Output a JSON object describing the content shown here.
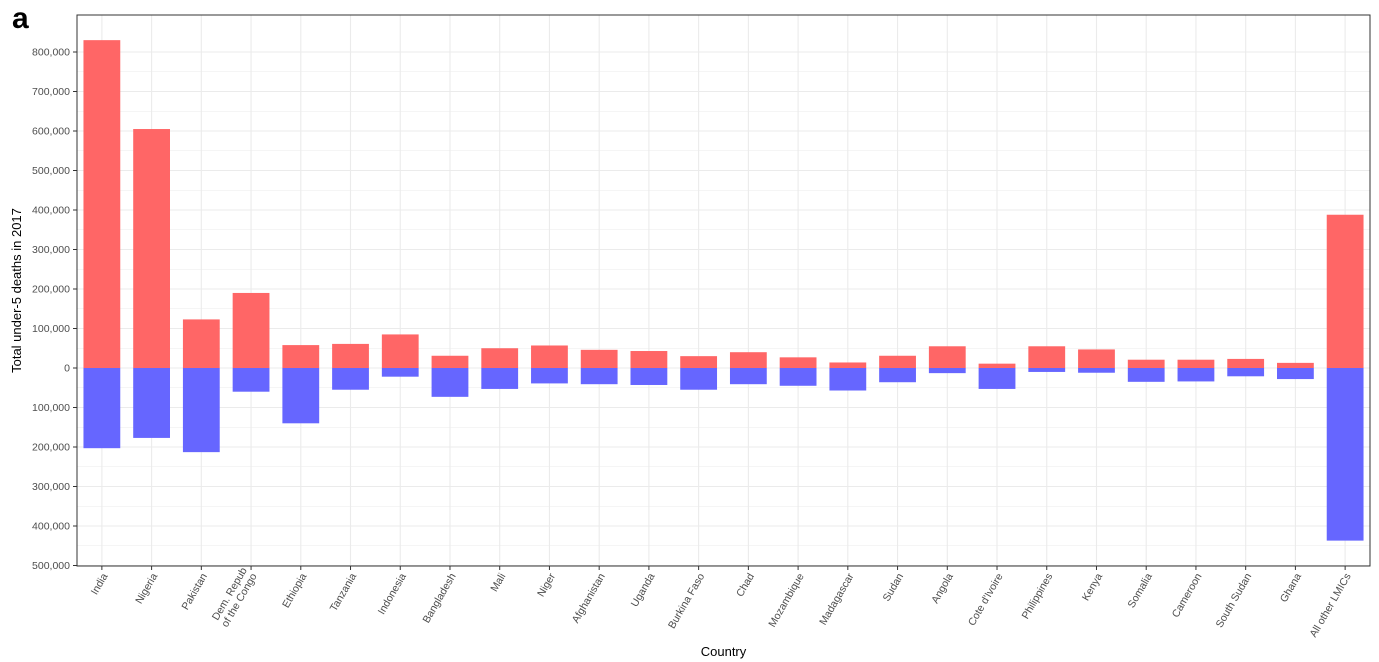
{
  "panel_label": "a",
  "colors": {
    "positive": "#ff6666",
    "negative": "#6666ff",
    "grid": "#ebebeb",
    "frame": "#333333"
  },
  "chart_data": {
    "type": "bar",
    "title": "",
    "xlabel": "Country",
    "ylabel": "Total under-5 deaths in 2017",
    "ylim": [
      -500000,
      850000
    ],
    "yticks": [
      -500000,
      -400000,
      -300000,
      -200000,
      -100000,
      0,
      100000,
      200000,
      300000,
      400000,
      500000,
      600000,
      700000,
      800000
    ],
    "ytick_labels": [
      "500,000",
      "400,000",
      "300,000",
      "200,000",
      "100,000",
      "0",
      "100,000",
      "200,000",
      "300,000",
      "400,000",
      "500,000",
      "600,000",
      "700,000",
      "800,000"
    ],
    "grid": true,
    "categories": [
      "India",
      "Nigeria",
      "Pakistan",
      "Dem. Repub|of the Congo",
      "Ethiopia",
      "Tanzania",
      "Indonesia",
      "Bangladesh",
      "Mali",
      "Niger",
      "Afghanistan",
      "Uganda",
      "Burkina Faso",
      "Chad",
      "Mozambique",
      "Madagascar",
      "Sudan",
      "Angola",
      "Cote d'Ivoire",
      "Philippines",
      "Kenya",
      "Somalia",
      "Cameroon",
      "South Sudan",
      "Ghana",
      "All other LMICs"
    ],
    "series": [
      {
        "color": "#ff6666",
        "values": [
          830000,
          605000,
          123000,
          190000,
          58000,
          61000,
          85000,
          31000,
          50000,
          57000,
          46000,
          43000,
          30000,
          40000,
          27000,
          14000,
          31000,
          55000,
          11000,
          55000,
          47000,
          21000,
          21000,
          23000,
          13000,
          388000
        ]
      },
      {
        "color": "#6666ff",
        "values": [
          -203000,
          -177000,
          -213000,
          -60000,
          -140000,
          -55000,
          -22000,
          -73000,
          -53000,
          -39000,
          -41000,
          -43000,
          -55000,
          -41000,
          -45000,
          -57000,
          -36000,
          -13000,
          -53000,
          -10000,
          -12000,
          -35000,
          -34000,
          -21000,
          -28000,
          -437000
        ]
      }
    ]
  }
}
